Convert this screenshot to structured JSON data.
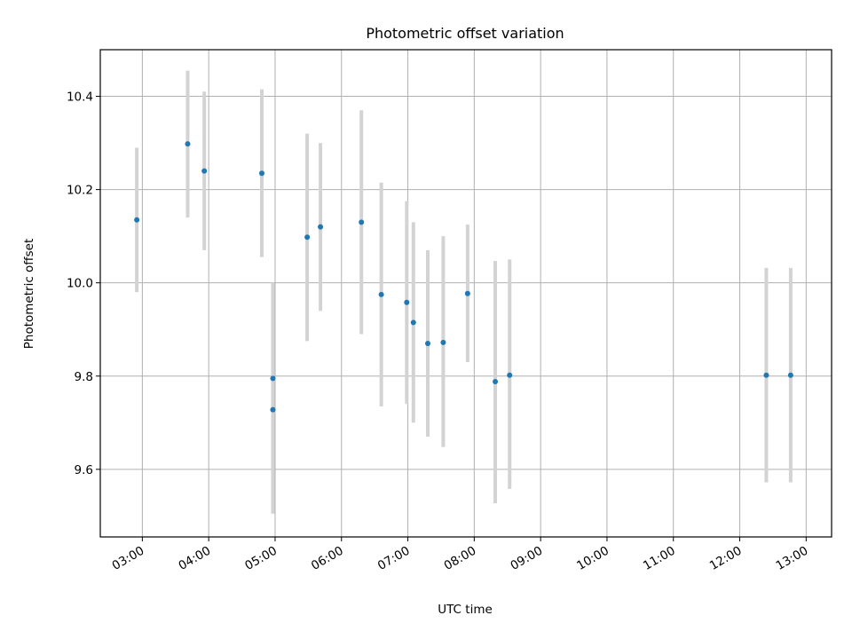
{
  "chart_data": {
    "type": "scatter",
    "title": "Photometric offset variation",
    "xlabel": "UTC time",
    "ylabel": "Photometric offset",
    "ylim": [
      9.455,
      10.5
    ],
    "xlim": [
      "02:22",
      "13:23"
    ],
    "grid": true,
    "x_tick_labels": [
      "03:00",
      "04:00",
      "05:00",
      "06:00",
      "07:00",
      "08:00",
      "09:00",
      "10:00",
      "11:00",
      "12:00",
      "13:00"
    ],
    "y_tick_labels": [
      "9.6",
      "9.8",
      "10.0",
      "10.2",
      "10.4"
    ],
    "y_ticks": [
      9.6,
      9.8,
      10.0,
      10.2,
      10.4
    ],
    "point_color": "#1f77b4",
    "errorbar_color": "#d3d3d3",
    "points": [
      {
        "x": "02:55",
        "y": 10.135,
        "ylow": 9.98,
        "yhigh": 10.29
      },
      {
        "x": "03:41",
        "y": 10.298,
        "ylow": 10.14,
        "yhigh": 10.455
      },
      {
        "x": "03:56",
        "y": 10.24,
        "ylow": 10.07,
        "yhigh": 10.41
      },
      {
        "x": "04:48",
        "y": 10.235,
        "ylow": 10.055,
        "yhigh": 10.415
      },
      {
        "x": "04:58",
        "y": 9.795,
        "ylow": 9.59,
        "yhigh": 10.0
      },
      {
        "x": "04:58",
        "y": 9.728,
        "ylow": 9.505,
        "yhigh": 9.95
      },
      {
        "x": "05:29",
        "y": 10.098,
        "ylow": 9.875,
        "yhigh": 10.32
      },
      {
        "x": "05:41",
        "y": 10.12,
        "ylow": 9.94,
        "yhigh": 10.3
      },
      {
        "x": "06:18",
        "y": 10.13,
        "ylow": 9.89,
        "yhigh": 10.37
      },
      {
        "x": "06:36",
        "y": 9.975,
        "ylow": 9.735,
        "yhigh": 10.215
      },
      {
        "x": "06:59",
        "y": 9.958,
        "ylow": 9.74,
        "yhigh": 10.175
      },
      {
        "x": "07:05",
        "y": 9.915,
        "ylow": 9.7,
        "yhigh": 10.13
      },
      {
        "x": "07:18",
        "y": 9.87,
        "ylow": 9.67,
        "yhigh": 10.07
      },
      {
        "x": "07:32",
        "y": 9.872,
        "ylow": 9.648,
        "yhigh": 10.1
      },
      {
        "x": "07:54",
        "y": 9.977,
        "ylow": 9.83,
        "yhigh": 10.125
      },
      {
        "x": "08:19",
        "y": 9.788,
        "ylow": 9.527,
        "yhigh": 10.047
      },
      {
        "x": "08:32",
        "y": 9.802,
        "ylow": 9.558,
        "yhigh": 10.05
      },
      {
        "x": "12:24",
        "y": 9.802,
        "ylow": 9.572,
        "yhigh": 10.032
      },
      {
        "x": "12:46",
        "y": 9.802,
        "ylow": 9.572,
        "yhigh": 10.032
      }
    ]
  }
}
